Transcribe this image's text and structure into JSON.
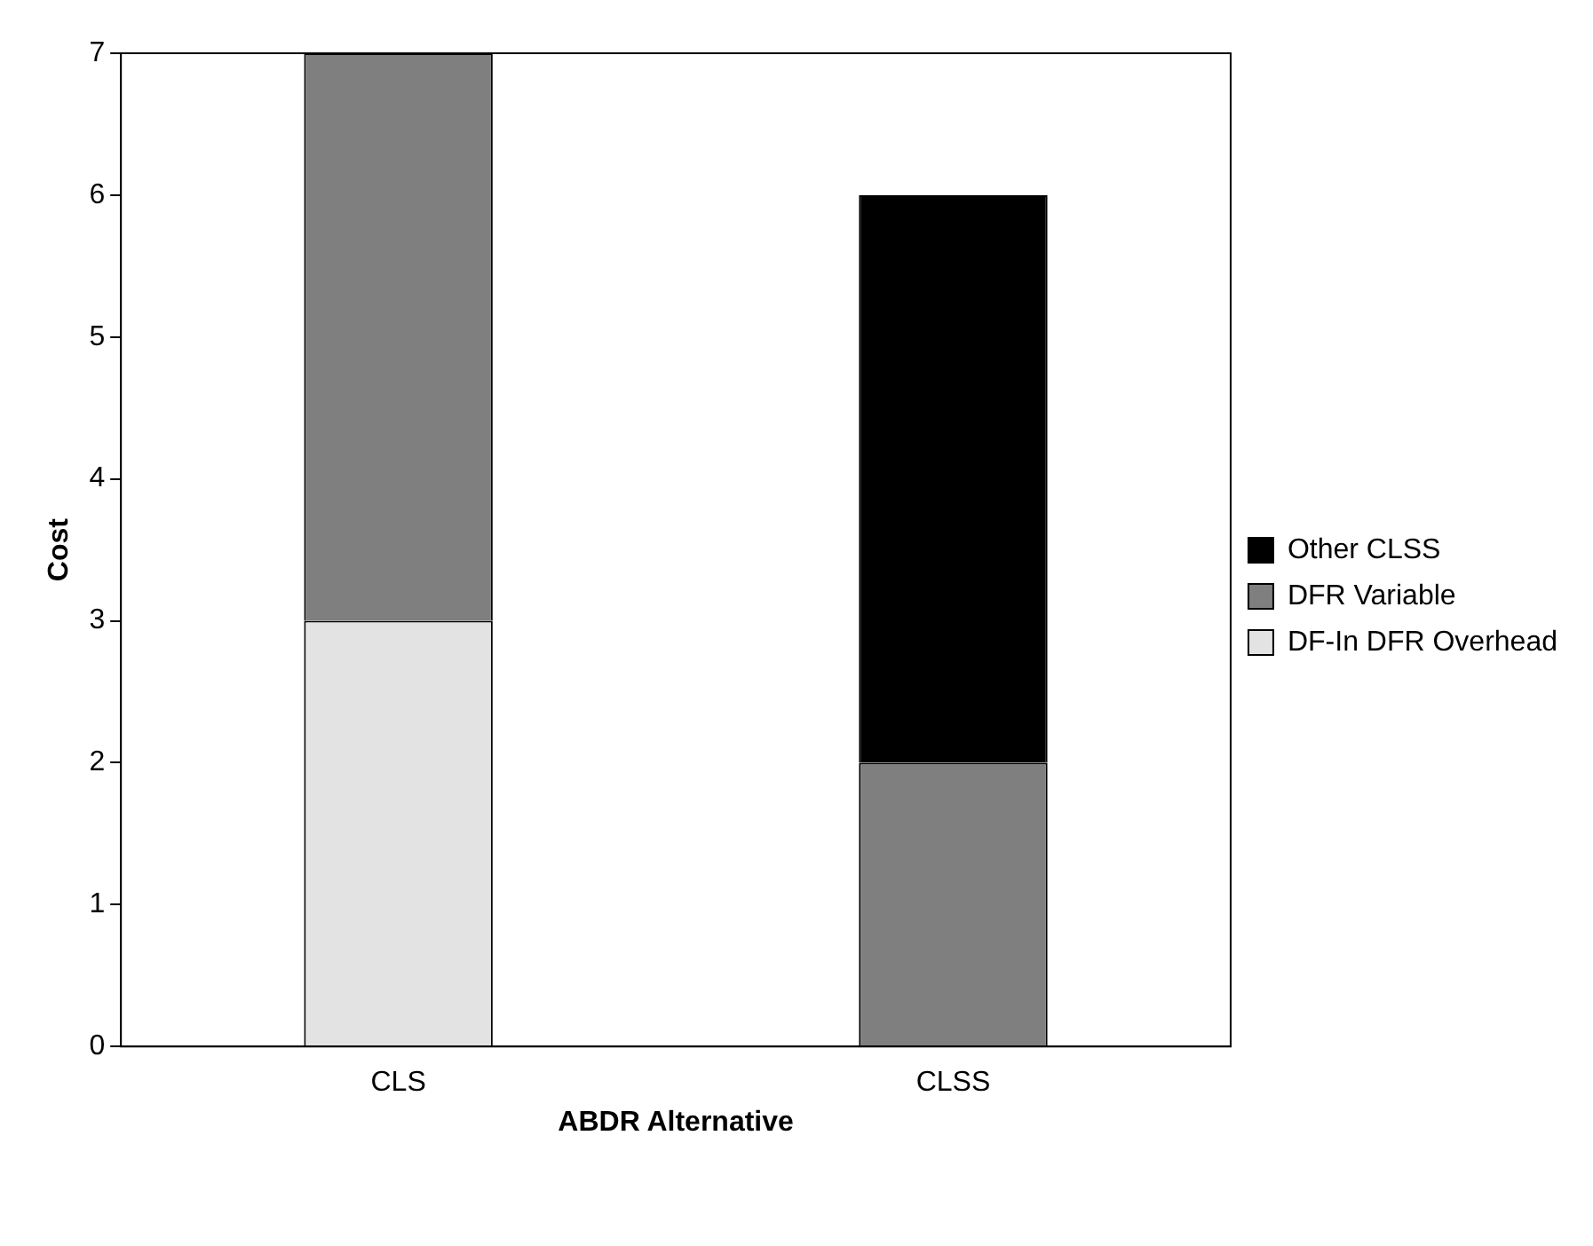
{
  "chart_data": {
    "type": "bar",
    "stacked": true,
    "xlabel": "ABDR Alternative",
    "ylabel": "Cost",
    "categories": [
      "CLS",
      "CLSS"
    ],
    "series": [
      {
        "name": "DF-In DFR Overhead",
        "color": "#e3e3e3",
        "values": [
          3,
          0
        ]
      },
      {
        "name": "DFR Variable",
        "color": "#7f7f7f",
        "values": [
          4,
          2
        ]
      },
      {
        "name": "Other CLSS",
        "color": "#000000",
        "values": [
          0,
          4
        ]
      }
    ],
    "ylim": [
      0,
      7
    ],
    "yticks": [
      0,
      1,
      2,
      3,
      4,
      5,
      6,
      7
    ],
    "grid": false,
    "legend": "right"
  }
}
